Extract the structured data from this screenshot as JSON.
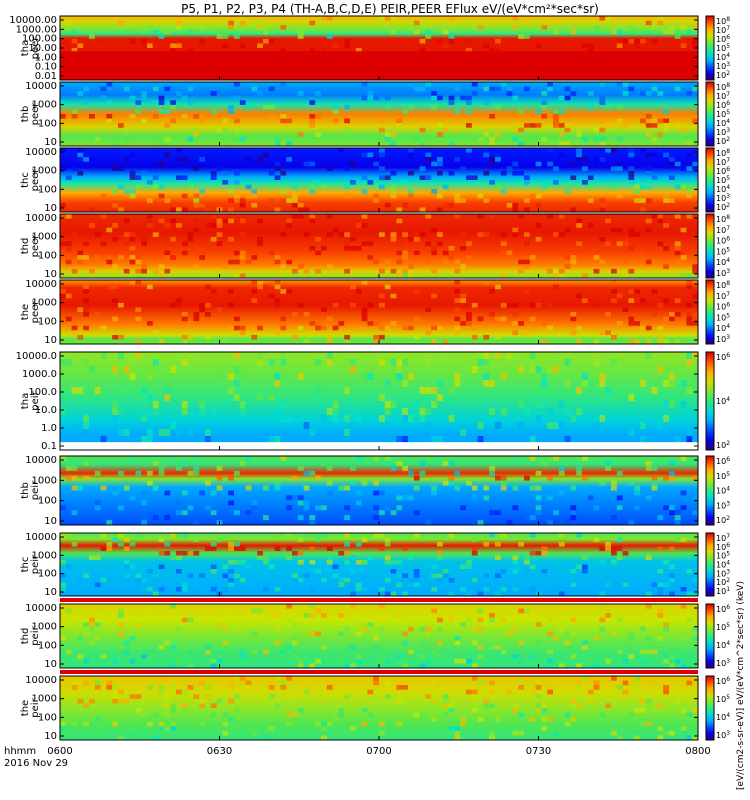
{
  "title": "P5, P1, P2, P3, P4 (TH-A,B,C,D,E) PEIR,PEER EFlux eV/(eV*cm²*sec*sr)",
  "side_units": "[eV/(cm2-s-sr-eV)] eV/(eV*cm^2*sec*sr) (keV)",
  "time_axis": {
    "var_label": "hhmm",
    "date": "2016 Nov 29",
    "ticks": [
      "0600",
      "0630",
      "0700",
      "0730",
      "0800"
    ]
  },
  "chart_data": [
    {
      "type": "heatmap",
      "ylabel": "tha\npeer",
      "yscale": "log",
      "yticks": [
        "10000.00",
        "1000.00",
        "100.00",
        "10.00",
        "1.00",
        "0.10",
        "0.01"
      ],
      "cbar_ticks": [
        "10^8",
        "10^7",
        "10^6",
        "10^5",
        "10^4",
        "10^3",
        "10^2"
      ]
    },
    {
      "type": "heatmap",
      "ylabel": "thb\npeer",
      "yscale": "log",
      "yticks": [
        "10000",
        "1000",
        "100",
        "10"
      ],
      "cbar_ticks": [
        "10^8",
        "10^7",
        "10^6",
        "10^5",
        "10^4",
        "10^3",
        "10^2"
      ]
    },
    {
      "type": "heatmap",
      "ylabel": "thc\npeer",
      "yscale": "log",
      "yticks": [
        "10000",
        "1000",
        "100",
        "10"
      ],
      "cbar_ticks": [
        "10^8",
        "10^7",
        "10^6",
        "10^5",
        "10^4",
        "10^3",
        "10^2"
      ]
    },
    {
      "type": "heatmap",
      "ylabel": "thd\npeer",
      "yscale": "log",
      "yticks": [
        "10000",
        "1000",
        "100",
        "10"
      ],
      "cbar_ticks": [
        "10^8",
        "10^7",
        "10^6",
        "10^5",
        "10^4",
        "10^3"
      ]
    },
    {
      "type": "heatmap",
      "ylabel": "the\npeer",
      "yscale": "log",
      "yticks": [
        "10000",
        "1000",
        "100",
        "10"
      ],
      "cbar_ticks": [
        "10^8",
        "10^7",
        "10^6",
        "10^5",
        "10^4",
        "10^3"
      ]
    },
    {
      "type": "heatmap",
      "ylabel": "tha\npeir",
      "yscale": "log",
      "yticks": [
        "10000.0",
        "1000.0",
        "100.0",
        "10.0",
        "1.0",
        "0.1"
      ],
      "cbar_ticks": [
        "10^6",
        "10^4",
        "10^2"
      ]
    },
    {
      "type": "heatmap",
      "ylabel": "thb\npeir",
      "yscale": "log",
      "yticks": [
        "10000",
        "1000",
        "100",
        "10"
      ],
      "cbar_ticks": [
        "10^6",
        "10^5",
        "10^4",
        "10^3",
        "10^2"
      ]
    },
    {
      "type": "heatmap",
      "ylabel": "thc\npeir",
      "yscale": "log",
      "yticks": [
        "10000",
        "1000",
        "100",
        "10"
      ],
      "cbar_ticks": [
        "10^7",
        "10^6",
        "10^5",
        "10^4",
        "10^3",
        "10^2",
        "10^1"
      ]
    },
    {
      "type": "heatmap",
      "ylabel": "thd\npeir",
      "yscale": "log",
      "yticks": [
        "10000",
        "1000",
        "100",
        "10"
      ],
      "cbar_ticks": [
        "10^6",
        "10^5",
        "10^4",
        "10^3"
      ]
    },
    {
      "type": "heatmap",
      "ylabel": "the\npeir",
      "yscale": "log",
      "yticks": [
        "10000",
        "1000",
        "100",
        "10"
      ],
      "cbar_ticks": [
        "10^6",
        "10^5",
        "10^4",
        "10^3"
      ]
    }
  ]
}
